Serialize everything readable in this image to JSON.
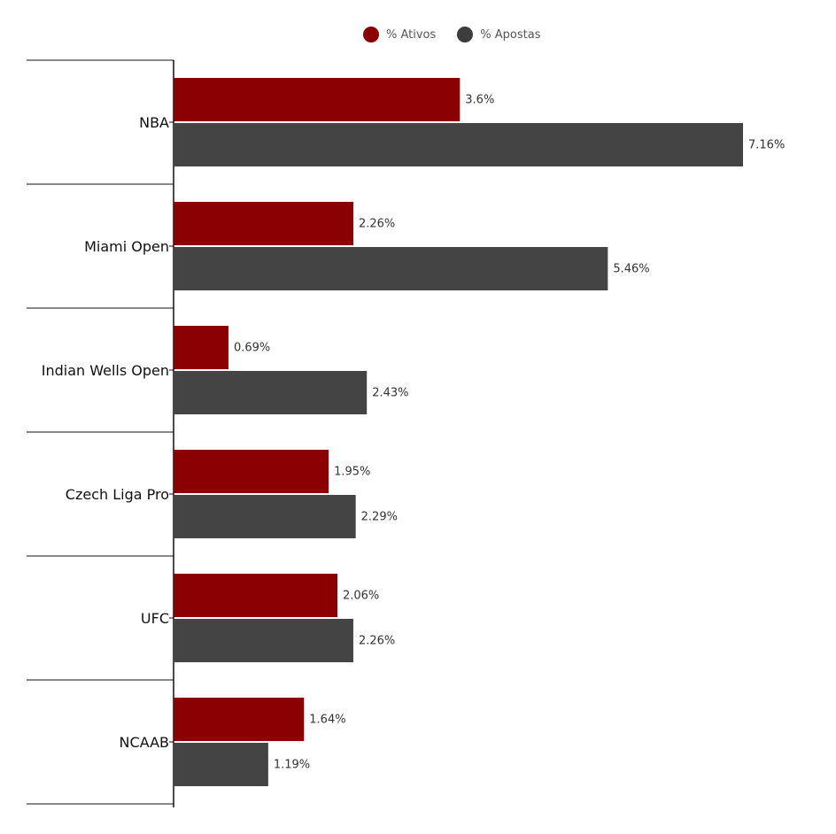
{
  "chart_data": {
    "type": "bar",
    "orientation": "horizontal",
    "categories": [
      "NBA",
      "Miami Open",
      "Indian Wells Open",
      "Czech Liga Pro",
      "UFC",
      "NCAAB"
    ],
    "series": [
      {
        "name": "% Ativos",
        "color": "#8b0000",
        "values": [
          3.6,
          2.26,
          0.69,
          1.95,
          2.06,
          1.64
        ],
        "labels": [
          "3.6%",
          "2.26%",
          "0.69%",
          "1.95%",
          "2.06%",
          "1.64%"
        ]
      },
      {
        "name": "% Apostas",
        "color": "#444444",
        "values": [
          7.16,
          5.46,
          2.43,
          2.29,
          2.26,
          1.19
        ],
        "labels": [
          "7.16%",
          "5.46%",
          "2.43%",
          "2.29%",
          "2.26%",
          "1.19%"
        ]
      }
    ],
    "xlim": [
      0,
      7.16
    ],
    "grid": false,
    "legend_position": "top-center"
  }
}
